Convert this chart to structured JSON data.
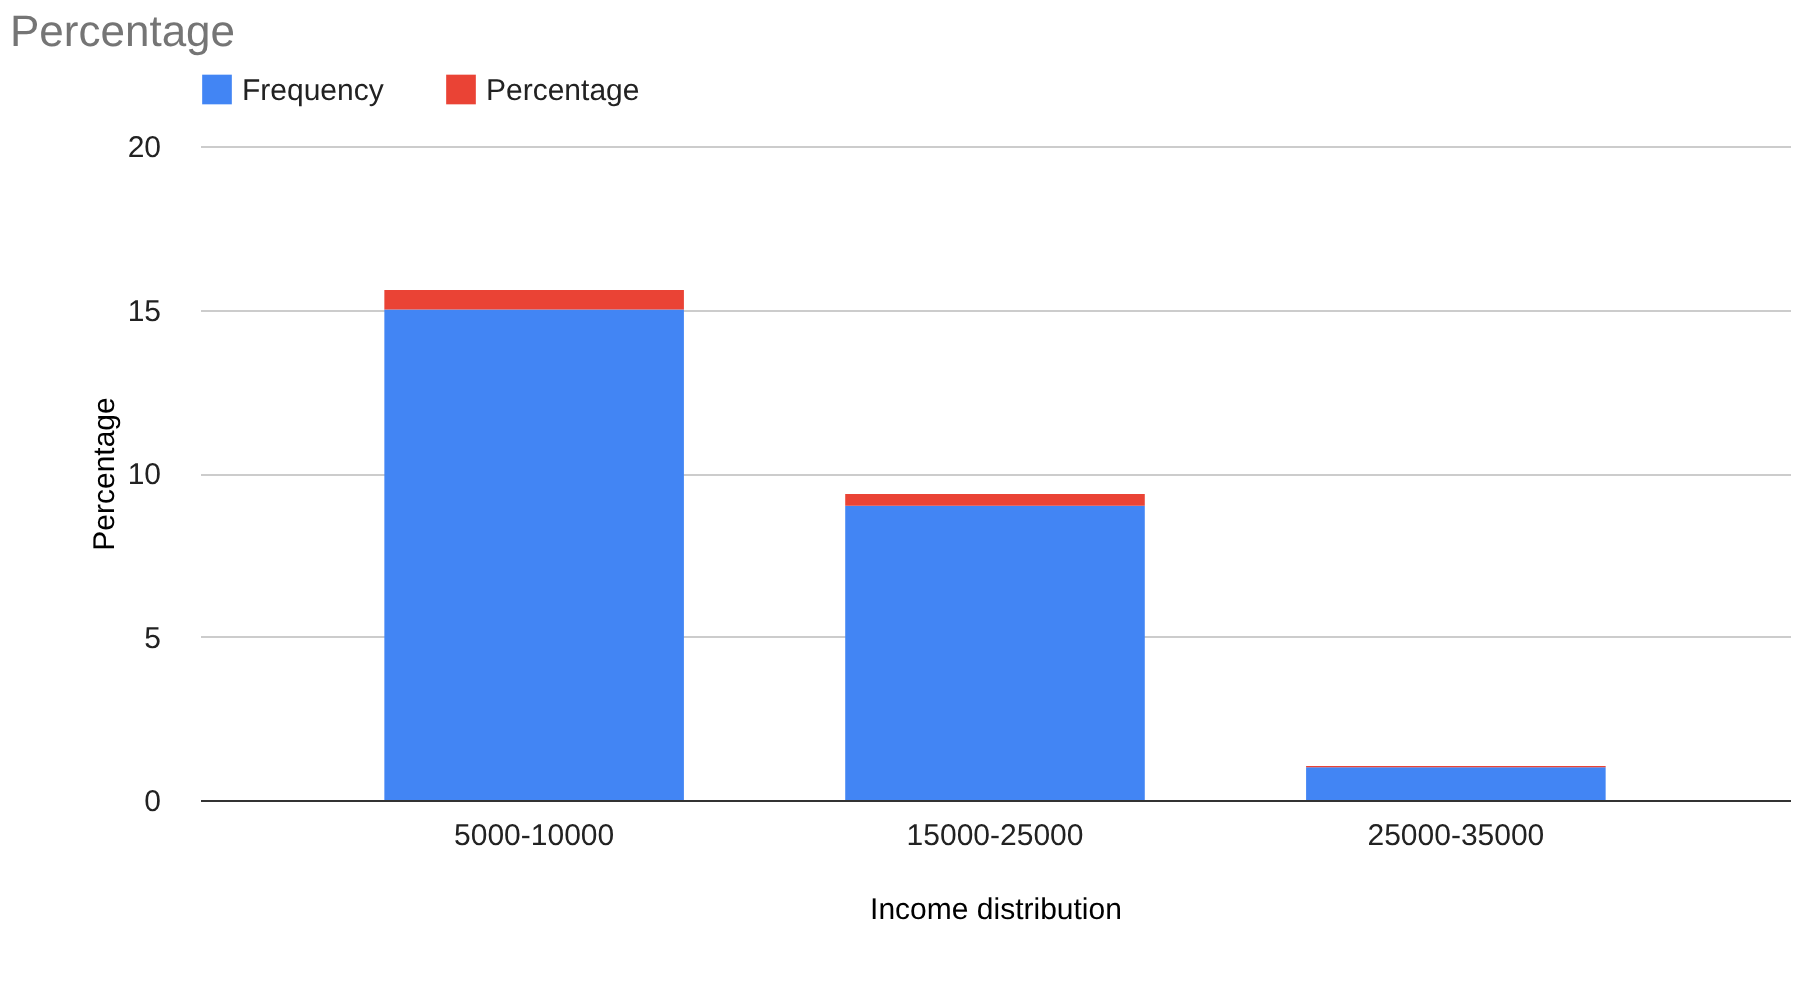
{
  "chart_data": {
    "type": "bar",
    "title": "Percentage",
    "xlabel": "Income distribution",
    "ylabel": "Percentage",
    "categories": [
      "5000-10000",
      "15000-25000",
      "25000-35000"
    ],
    "series": [
      {
        "name": "Frequency",
        "color": "#4285f4",
        "values": [
          15,
          9,
          1
        ]
      },
      {
        "name": "Percentage",
        "color": "#ea4335",
        "values": [
          0.6,
          0.36,
          0.04
        ]
      }
    ],
    "stacked": true,
    "ylim": [
      0,
      20
    ],
    "yticks": [
      0,
      5,
      10,
      15,
      20
    ],
    "grid": "y",
    "legend": "top"
  }
}
